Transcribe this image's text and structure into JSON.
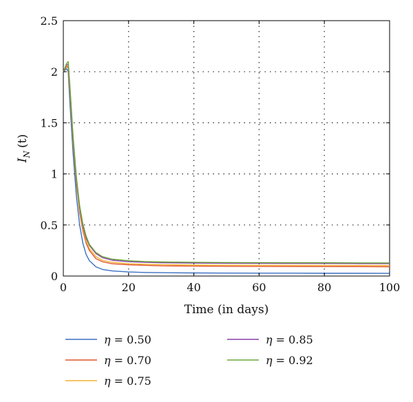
{
  "chart_data": {
    "type": "line",
    "title": "",
    "xlabel": "Time (in days)",
    "ylabel_main": "I",
    "ylabel_sub": "N",
    "ylabel_arg": "(t)",
    "xlim": [
      0,
      100
    ],
    "ylim": [
      0,
      2.5
    ],
    "xticks": [
      0,
      20,
      40,
      60,
      80,
      100
    ],
    "yticks": [
      0,
      0.5,
      1,
      1.5,
      2,
      2.5
    ],
    "xtick_labels": [
      "0",
      "20",
      "40",
      "60",
      "80",
      "100"
    ],
    "ytick_labels": [
      "0",
      "0.5",
      "1",
      "1.5",
      "2",
      "2.5"
    ],
    "grid": true,
    "legend_placement": "bottom",
    "x": [
      0,
      1,
      1.5,
      2,
      3,
      4,
      5,
      6,
      7,
      8,
      10,
      12,
      15,
      20,
      25,
      30,
      40,
      50,
      60,
      70,
      80,
      90,
      100
    ],
    "series": [
      {
        "name": "η = 0.50",
        "color": "#3a6fc2",
        "values": [
          2.0,
          2.03,
          2.0,
          1.7,
          1.2,
          0.78,
          0.5,
          0.32,
          0.21,
          0.15,
          0.09,
          0.065,
          0.05,
          0.04,
          0.035,
          0.033,
          0.03,
          0.029,
          0.028,
          0.028,
          0.027,
          0.027,
          0.026
        ]
      },
      {
        "name": "η = 0.70",
        "color": "#e0542c",
        "values": [
          2.0,
          2.05,
          2.04,
          1.8,
          1.3,
          0.9,
          0.62,
          0.44,
          0.32,
          0.25,
          0.17,
          0.14,
          0.12,
          0.11,
          0.105,
          0.1,
          0.097,
          0.095,
          0.094,
          0.093,
          0.092,
          0.092,
          0.091
        ]
      },
      {
        "name": "η = 0.75",
        "color": "#f0b030",
        "values": [
          2.0,
          2.06,
          2.05,
          1.82,
          1.32,
          0.92,
          0.64,
          0.46,
          0.34,
          0.27,
          0.19,
          0.155,
          0.135,
          0.12,
          0.115,
          0.112,
          0.108,
          0.106,
          0.105,
          0.104,
          0.104,
          0.103,
          0.103
        ]
      },
      {
        "name": "η = 0.85",
        "color": "#8a3fa8",
        "values": [
          2.0,
          2.07,
          2.07,
          1.85,
          1.35,
          0.95,
          0.67,
          0.49,
          0.37,
          0.3,
          0.22,
          0.18,
          0.155,
          0.14,
          0.135,
          0.13,
          0.127,
          0.125,
          0.124,
          0.123,
          0.123,
          0.122,
          0.122
        ]
      },
      {
        "name": "η = 0.92",
        "color": "#6aa83a",
        "values": [
          2.0,
          2.08,
          2.1,
          1.87,
          1.37,
          0.97,
          0.69,
          0.51,
          0.39,
          0.31,
          0.23,
          0.19,
          0.165,
          0.15,
          0.142,
          0.138,
          0.134,
          0.132,
          0.131,
          0.13,
          0.13,
          0.129,
          0.129
        ]
      }
    ]
  }
}
